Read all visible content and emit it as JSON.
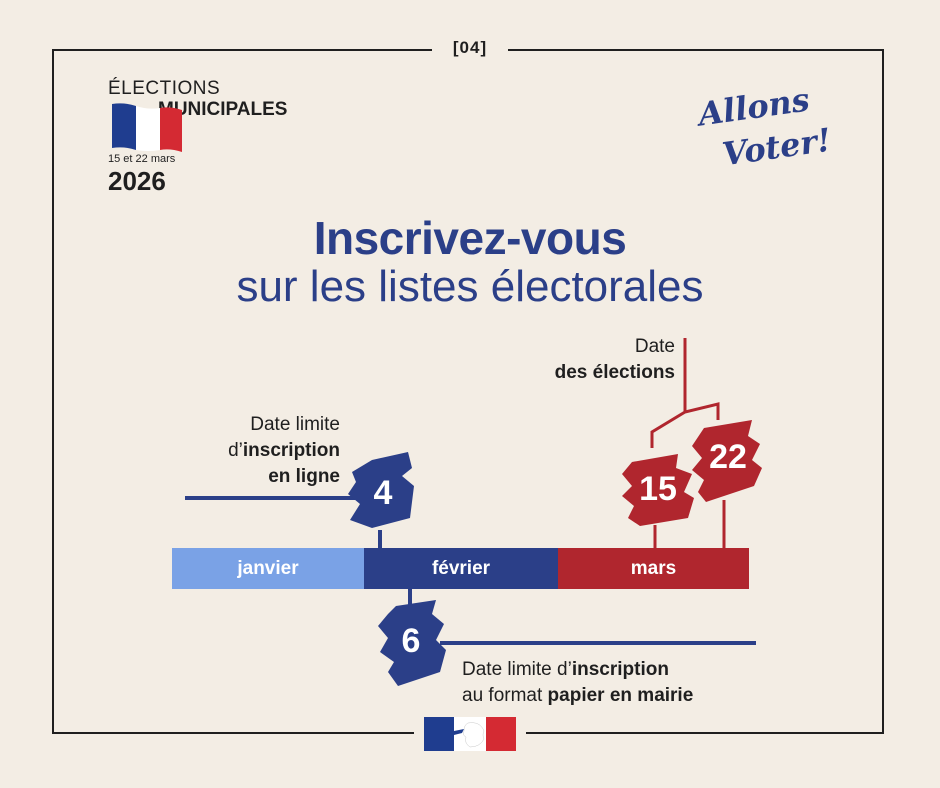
{
  "page_number": "[04]",
  "header": {
    "line1": "ÉLECTIONS",
    "line2": "MUNICIPALES",
    "dates": "15 et 22 mars",
    "year": "2026"
  },
  "slogan": {
    "line1": "Allons",
    "line2": "Voter!"
  },
  "title": {
    "line1": "Inscrivez-vous",
    "line2": "sur les listes électorales"
  },
  "timeline": {
    "months": [
      {
        "label": "janvier",
        "color": "#7aa2e6"
      },
      {
        "label": "février",
        "color": "#2b3f88"
      },
      {
        "label": "mars",
        "color": "#b0262e"
      }
    ],
    "online_deadline": {
      "day": "4",
      "label_line1": "Date limite",
      "label_prefix": "d’",
      "label_bold1": "inscription",
      "label_bold2": "en ligne"
    },
    "paper_deadline": {
      "day": "6",
      "label_line1_plain": "Date limite d’",
      "label_line1_bold": "inscription",
      "label_line2_plain": "au format ",
      "label_line2_bold": "papier en mairie"
    },
    "elections": {
      "label_line1": "Date",
      "label_line2": "des élections",
      "days": [
        "15",
        "22"
      ]
    }
  },
  "colors": {
    "blue": "#2b3f88",
    "light_blue": "#7aa2e6",
    "red": "#b0262e",
    "background": "#f3ede4",
    "frame": "#1f1f1f"
  },
  "icons": {
    "flag": "french-flag-icon",
    "marianne": "marianne-logo-icon"
  }
}
